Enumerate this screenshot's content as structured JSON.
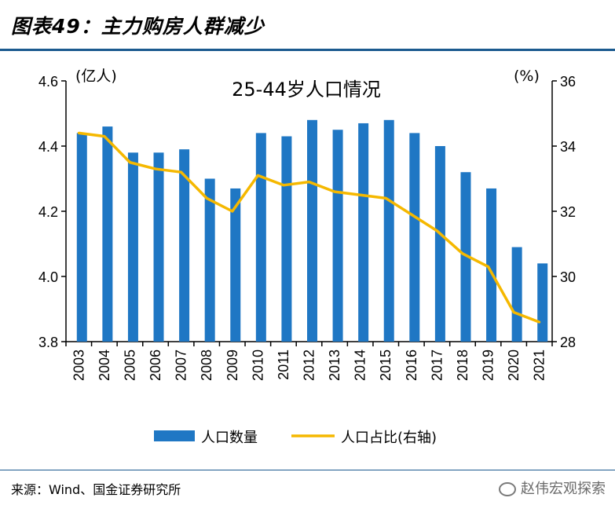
{
  "header": {
    "title": "图表49：主力购房人群减少"
  },
  "footer": {
    "source": "来源：Wind、国金证券研究所",
    "watermark": "赵伟宏观探索"
  },
  "chart_data": {
    "type": "bar",
    "title": "25-44岁人口情况",
    "ylabel_left": "(亿人)",
    "ylabel_right": "(%)",
    "categories": [
      "2003",
      "2004",
      "2005",
      "2006",
      "2007",
      "2008",
      "2009",
      "2010",
      "2011",
      "2012",
      "2013",
      "2014",
      "2015",
      "2016",
      "2017",
      "2018",
      "2019",
      "2020",
      "2021"
    ],
    "ylim_left": [
      3.8,
      4.6
    ],
    "ylim_right": [
      28,
      36
    ],
    "yticks_left": [
      "3.8",
      "4.0",
      "4.2",
      "4.4",
      "4.6"
    ],
    "yticks_right": [
      "28",
      "30",
      "32",
      "34",
      "36"
    ],
    "series": [
      {
        "name": "人口数量",
        "type": "bar",
        "axis": "left",
        "color": "#1f77c4",
        "values": [
          4.44,
          4.46,
          4.38,
          4.38,
          4.39,
          4.3,
          4.27,
          4.44,
          4.43,
          4.48,
          4.45,
          4.47,
          4.48,
          4.44,
          4.4,
          4.32,
          4.27,
          4.09,
          4.04
        ]
      },
      {
        "name": "人口占比(右轴)",
        "type": "line",
        "axis": "right",
        "color": "#f5b800",
        "values": [
          34.4,
          34.3,
          33.5,
          33.3,
          33.2,
          32.4,
          32.0,
          33.1,
          32.8,
          32.9,
          32.6,
          32.5,
          32.4,
          31.9,
          31.4,
          30.7,
          30.3,
          28.9,
          28.6
        ]
      }
    ]
  }
}
